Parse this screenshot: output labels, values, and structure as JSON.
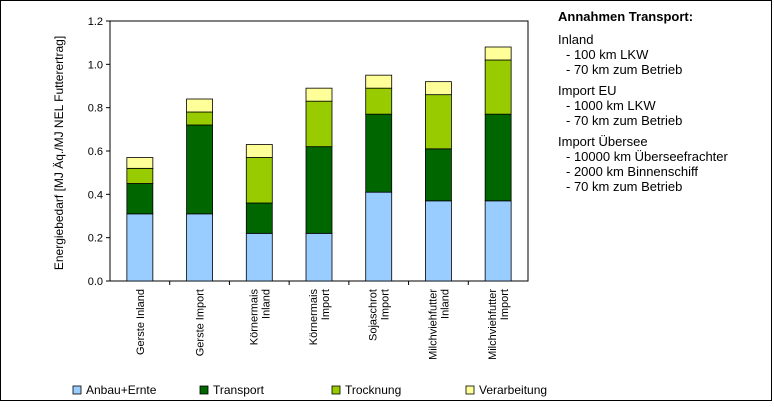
{
  "chart_data": {
    "type": "bar",
    "stacked": true,
    "ylabel": "Energiebedarf [MJ Äq./MJ NEL Futterertrag]",
    "ylim": [
      0,
      1.2
    ],
    "yticks": [
      "0.0",
      "0.2",
      "0.4",
      "0.6",
      "0.8",
      "1.0",
      "1.2"
    ],
    "grid": false,
    "legend_position": "bottom",
    "categories": [
      [
        "Gerste Inland"
      ],
      [
        "Gerste Import"
      ],
      [
        "Körnermais",
        "Inland"
      ],
      [
        "Körnermais",
        "Import"
      ],
      [
        "Sojaschrot",
        "Import"
      ],
      [
        "Milchviehfutter",
        "Inland"
      ],
      [
        "Milchviehfutter",
        "Import"
      ]
    ],
    "series": [
      {
        "name": "Anbau+Ernte",
        "color": "#99ccff",
        "values": [
          0.31,
          0.31,
          0.22,
          0.22,
          0.41,
          0.37,
          0.37
        ]
      },
      {
        "name": "Transport",
        "color": "#006600",
        "values": [
          0.14,
          0.41,
          0.14,
          0.4,
          0.36,
          0.24,
          0.4
        ]
      },
      {
        "name": "Trocknung",
        "color": "#99cc00",
        "values": [
          0.07,
          0.06,
          0.21,
          0.21,
          0.12,
          0.25,
          0.25
        ]
      },
      {
        "name": "Verarbeitung",
        "color": "#ffff99",
        "values": [
          0.05,
          0.06,
          0.06,
          0.06,
          0.06,
          0.06,
          0.06
        ]
      }
    ]
  },
  "annotations": {
    "title": "Annahmen Transport:",
    "sections": [
      {
        "heading": "Inland",
        "items": [
          "- 100 km LKW",
          "- 70 km zum Betrieb"
        ]
      },
      {
        "heading": "Import EU",
        "items": [
          "- 1000 km LKW",
          "- 70 km zum Betrieb"
        ]
      },
      {
        "heading": "Import Übersee",
        "items": [
          "- 10000 km Überseefrachter",
          "- 2000 km Binnenschiff",
          "- 70 km zum Betrieb"
        ]
      }
    ]
  }
}
